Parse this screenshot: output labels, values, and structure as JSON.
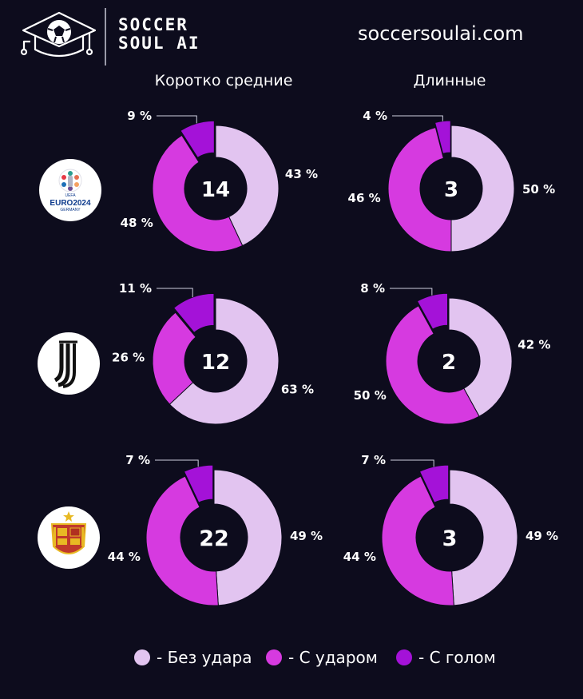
{
  "header": {
    "brand_line1": "SOCCER",
    "brand_line2": "SOUL AI",
    "website": "soccersoulai.com"
  },
  "colors": {
    "background": "#0d0c1d",
    "no_shot": "#e2c4f0",
    "shot": "#d63ae0",
    "goal": "#a412d8"
  },
  "legend": [
    {
      "label": "- Без удара",
      "color": "#e2c4f0"
    },
    {
      "label": "- С ударом",
      "color": "#d63ae0"
    },
    {
      "label": "- С голом",
      "color": "#a412d8"
    }
  ],
  "chart_data": {
    "type": "pie",
    "columns": [
      "Коротко средние",
      "Длинные"
    ],
    "rows": [
      {
        "team_icon": "euro2024-logo-icon",
        "team_text": "EURO2024",
        "team_subtext": "GERMANY",
        "charts": [
          {
            "center": "14",
            "slices": [
              {
                "category": "Без удара",
                "value": 43,
                "label": "43 %"
              },
              {
                "category": "С ударом",
                "value": 48,
                "label": "48 %"
              },
              {
                "category": "С голом",
                "value": 9,
                "label": "9 %"
              }
            ]
          },
          {
            "center": "3",
            "slices": [
              {
                "category": "Без удара",
                "value": 50,
                "label": "50 %"
              },
              {
                "category": "С ударом",
                "value": 46,
                "label": "46 %"
              },
              {
                "category": "С голом",
                "value": 4,
                "label": "4 %"
              }
            ]
          }
        ]
      },
      {
        "team_icon": "juventus-logo-icon",
        "charts": [
          {
            "center": "12",
            "slices": [
              {
                "category": "Без удара",
                "value": 63,
                "label": "63 %"
              },
              {
                "category": "С ударом",
                "value": 26,
                "label": "26 %"
              },
              {
                "category": "С голом",
                "value": 11,
                "label": "11 %"
              }
            ]
          },
          {
            "center": "2",
            "slices": [
              {
                "category": "Без удара",
                "value": 42,
                "label": "42 %"
              },
              {
                "category": "С ударом",
                "value": 50,
                "label": "50 %"
              },
              {
                "category": "С голом",
                "value": 8,
                "label": "8 %"
              }
            ]
          }
        ]
      },
      {
        "team_icon": "spain-crest-icon",
        "charts": [
          {
            "center": "22",
            "slices": [
              {
                "category": "Без удара",
                "value": 49,
                "label": "49 %"
              },
              {
                "category": "С ударом",
                "value": 44,
                "label": "44 %"
              },
              {
                "category": "С голом",
                "value": 7,
                "label": "7 %"
              }
            ]
          },
          {
            "center": "3",
            "slices": [
              {
                "category": "Без удара",
                "value": 49,
                "label": "49 %"
              },
              {
                "category": "С ударом",
                "value": 44,
                "label": "44 %"
              },
              {
                "category": "С голом",
                "value": 7,
                "label": "7 %"
              }
            ]
          }
        ]
      }
    ]
  }
}
